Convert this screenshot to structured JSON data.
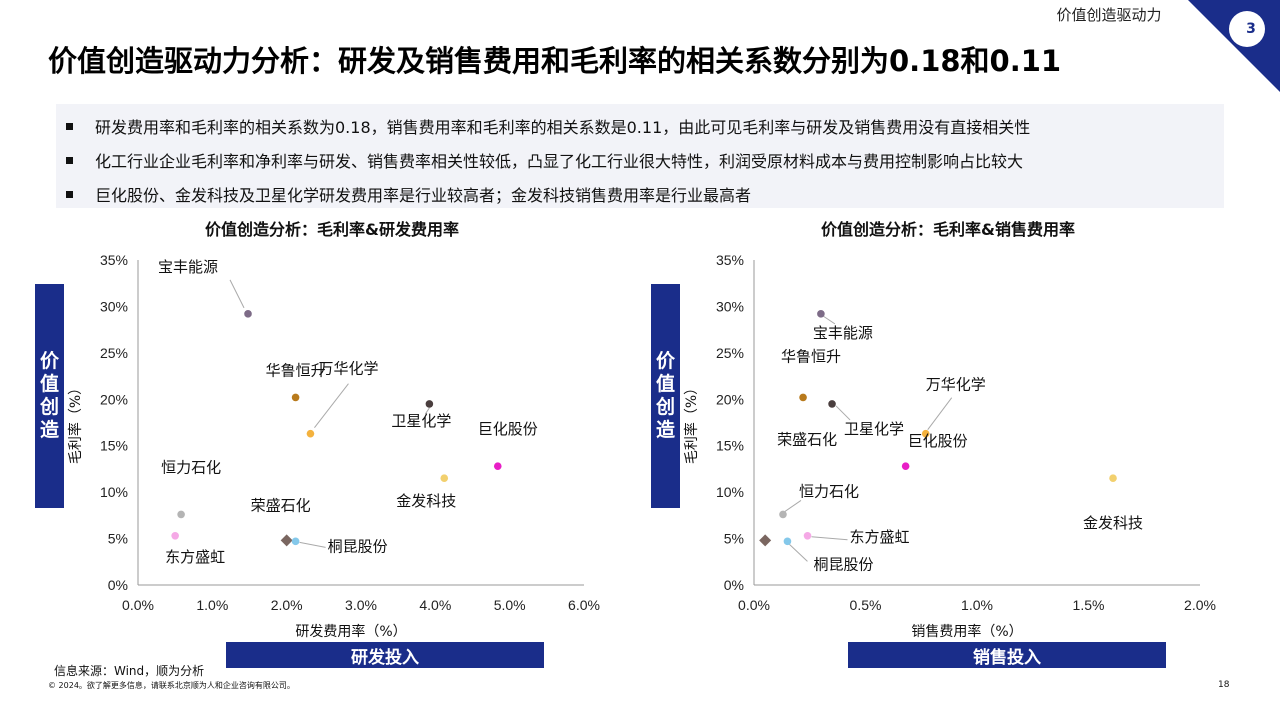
{
  "header": {
    "section": "价值创造驱动力",
    "page_badge": "3",
    "title": "价值创造驱动力分析：研发及销售费用和毛利率的相关系数分别为0.18和0.11"
  },
  "bullets": [
    "研发费用率和毛利率的相关系数为0.18，销售费用率和毛利率的相关系数是0.11，由此可见毛利率与研发及销售费用没有直接相关性",
    "化工行业企业毛利率和净利率与研发、销售费率相关性较低，凸显了化工行业很大特性，利润受原材料成本与费用控制影响占比较大",
    "巨化股份、金发科技及卫星化学研发费用率是行业较高者；金发科技销售费用率是行业最高者"
  ],
  "side_label": "价值创造",
  "colors": {
    "accent": "#1a2d8a",
    "宝丰能源": "#7d6b87",
    "华鲁恒升": "#b87a1c",
    "万华化学": "#f4b23e",
    "卫星化学": "#4a3e3e",
    "巨化股份": "#e81ec6",
    "金发科技": "#f2d06e",
    "恒力石化": "#b4b4b4",
    "荣盛石化": "#7a6660",
    "桐昆股份": "#84c8ea",
    "东方盛虹": "#f5a9e6"
  },
  "chart_data": [
    {
      "type": "scatter",
      "title": "价值创造分析：毛利率&研发费用率",
      "xlabel": "研发费用率（%）",
      "ylabel": "毛利率（%）",
      "footer_label": "研发投入",
      "xlim": [
        0,
        6
      ],
      "ylim": [
        0,
        35
      ],
      "x_ticks": [
        "0.0%",
        "1.0%",
        "2.0%",
        "3.0%",
        "4.0%",
        "5.0%",
        "6.0%"
      ],
      "y_ticks": [
        "0%",
        "5%",
        "10%",
        "15%",
        "20%",
        "25%",
        "30%",
        "35%"
      ],
      "grid": false,
      "points": [
        {
          "name": "宝丰能源",
          "x": 1.48,
          "y": 29.2,
          "marker": "circle"
        },
        {
          "name": "华鲁恒升",
          "x": 2.12,
          "y": 20.2,
          "marker": "circle"
        },
        {
          "name": "万华化学",
          "x": 2.32,
          "y": 16.3,
          "marker": "circle"
        },
        {
          "name": "卫星化学",
          "x": 3.92,
          "y": 19.5,
          "marker": "circle"
        },
        {
          "name": "巨化股份",
          "x": 4.84,
          "y": 12.8,
          "marker": "circle"
        },
        {
          "name": "金发科技",
          "x": 4.12,
          "y": 11.5,
          "marker": "circle"
        },
        {
          "name": "恒力石化",
          "x": 0.58,
          "y": 7.6,
          "marker": "circle"
        },
        {
          "name": "荣盛石化",
          "x": 2.0,
          "y": 4.8,
          "marker": "diamond"
        },
        {
          "name": "桐昆股份",
          "x": 2.12,
          "y": 4.7,
          "marker": "circle"
        },
        {
          "name": "东方盛虹",
          "x": 0.5,
          "y": 5.3,
          "marker": "circle"
        }
      ]
    },
    {
      "type": "scatter",
      "title": "价值创造分析：毛利率&销售费用率",
      "xlabel": "销售费用率（%）",
      "ylabel": "毛利率（%）",
      "footer_label": "销售投入",
      "xlim": [
        0,
        2
      ],
      "ylim": [
        0,
        35
      ],
      "x_ticks": [
        "0.0%",
        "0.5%",
        "1.0%",
        "1.5%",
        "2.0%"
      ],
      "y_ticks": [
        "0%",
        "5%",
        "10%",
        "15%",
        "20%",
        "25%",
        "30%",
        "35%"
      ],
      "grid": false,
      "points": [
        {
          "name": "宝丰能源",
          "x": 0.3,
          "y": 29.2,
          "marker": "circle"
        },
        {
          "name": "华鲁恒升",
          "x": 0.22,
          "y": 20.2,
          "marker": "circle"
        },
        {
          "name": "万华化学",
          "x": 0.77,
          "y": 16.3,
          "marker": "circle"
        },
        {
          "name": "卫星化学",
          "x": 0.35,
          "y": 19.5,
          "marker": "circle"
        },
        {
          "name": "巨化股份",
          "x": 0.68,
          "y": 12.8,
          "marker": "circle"
        },
        {
          "name": "金发科技",
          "x": 1.61,
          "y": 11.5,
          "marker": "circle"
        },
        {
          "name": "恒力石化",
          "x": 0.13,
          "y": 7.6,
          "marker": "circle"
        },
        {
          "name": "荣盛石化",
          "x": 0.05,
          "y": 4.8,
          "marker": "diamond"
        },
        {
          "name": "桐昆股份",
          "x": 0.15,
          "y": 4.7,
          "marker": "circle"
        },
        {
          "name": "东方盛虹",
          "x": 0.24,
          "y": 5.3,
          "marker": "circle"
        }
      ]
    }
  ],
  "footer": {
    "source": "信息来源：Wind，顺为分析",
    "copyright": "© 2024。欲了解更多信息，请联系北京顺为人和企业咨询有限公司。",
    "page_number": "18"
  }
}
